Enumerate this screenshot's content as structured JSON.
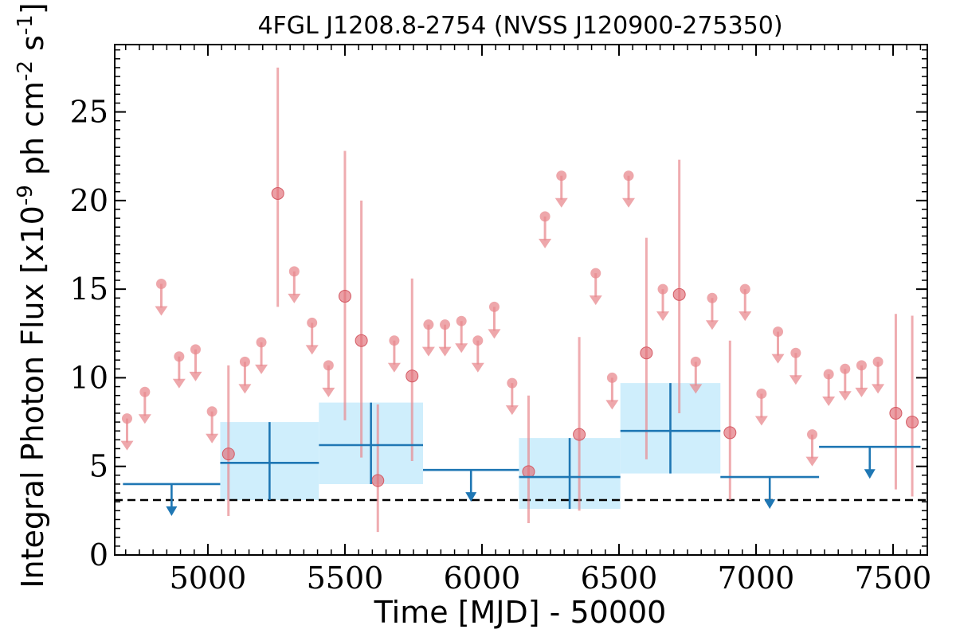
{
  "chart_data": {
    "type": "scatter",
    "title": "4FGL J1208.8-2754 (NVSS J120900-275350)",
    "xlabel": "Time [MJD] - 50000",
    "ylabel": "Integral Photon Flux [x10^-9 ph cm^-2 s^-1]",
    "xlim": [
      4660,
      7625
    ],
    "ylim": [
      0,
      28.8
    ],
    "xticks": [
      5000,
      5500,
      6000,
      6500,
      7000,
      7500
    ],
    "yticks": [
      0,
      5,
      10,
      15,
      20,
      25
    ],
    "xtick_labels": [
      "5000",
      "5500",
      "6000",
      "6500",
      "7000",
      "7500"
    ],
    "ytick_labels": [
      "0",
      "5",
      "10",
      "15",
      "20",
      "25"
    ],
    "baseline": 3.1,
    "colors": {
      "fine": "#e8898f",
      "coarse": "#1f77b4",
      "band": "#cfeefc",
      "baseline": "#000000"
    },
    "series": [
      {
        "kind": "detections",
        "points": [
          {
            "x": 5075,
            "y": 5.7,
            "lo": 2.2,
            "hi": 10.7
          },
          {
            "x": 5255,
            "y": 20.4,
            "lo": 14.0,
            "hi": 27.5
          },
          {
            "x": 5500,
            "y": 14.6,
            "lo": 7.6,
            "hi": 22.8
          },
          {
            "x": 5560,
            "y": 12.1,
            "lo": 5.5,
            "hi": 20.0
          },
          {
            "x": 5620,
            "y": 4.2,
            "lo": 1.3,
            "hi": 8.5
          },
          {
            "x": 5745,
            "y": 10.1,
            "lo": 5.3,
            "hi": 15.6
          },
          {
            "x": 6170,
            "y": 4.7,
            "lo": 1.8,
            "hi": 9.0
          },
          {
            "x": 6355,
            "y": 6.8,
            "lo": 2.5,
            "hi": 12.3
          },
          {
            "x": 6600,
            "y": 11.4,
            "lo": 5.4,
            "hi": 17.9
          },
          {
            "x": 6720,
            "y": 14.7,
            "lo": 8.0,
            "hi": 22.3
          },
          {
            "x": 6905,
            "y": 6.9,
            "lo": 3.1,
            "hi": 12.1
          },
          {
            "x": 7510,
            "y": 8.0,
            "lo": 3.7,
            "hi": 13.6
          },
          {
            "x": 7570,
            "y": 7.5,
            "lo": 3.3,
            "hi": 13.5
          }
        ]
      },
      {
        "kind": "upper_limits",
        "values": [
          [
            4705,
            7.7
          ],
          [
            4770,
            9.2
          ],
          [
            4830,
            15.3
          ],
          [
            4895,
            11.2
          ],
          [
            4955,
            11.6
          ],
          [
            5015,
            8.1
          ],
          [
            5135,
            10.9
          ],
          [
            5195,
            12.0
          ],
          [
            5315,
            16.0
          ],
          [
            5380,
            13.1
          ],
          [
            5440,
            10.7
          ],
          [
            5680,
            12.1
          ],
          [
            5805,
            13.0
          ],
          [
            5865,
            13.0
          ],
          [
            5925,
            13.2
          ],
          [
            5985,
            12.1
          ],
          [
            6045,
            14.0
          ],
          [
            6110,
            9.7
          ],
          [
            6230,
            19.1
          ],
          [
            6290,
            21.4
          ],
          [
            6415,
            15.9
          ],
          [
            6475,
            10.0
          ],
          [
            6535,
            21.4
          ],
          [
            6660,
            15.0
          ],
          [
            6780,
            10.9
          ],
          [
            6840,
            14.5
          ],
          [
            6960,
            15.0
          ],
          [
            7020,
            9.1
          ],
          [
            7080,
            12.6
          ],
          [
            7145,
            11.4
          ],
          [
            7205,
            6.8
          ],
          [
            7265,
            10.2
          ],
          [
            7325,
            10.5
          ],
          [
            7385,
            10.7
          ],
          [
            7445,
            10.9
          ]
        ]
      },
      {
        "kind": "binned_detections",
        "bins": [
          {
            "x0": 5045,
            "x1": 5405,
            "y": 5.2,
            "lo": 3.1,
            "hi": 7.5
          },
          {
            "x0": 5405,
            "x1": 5785,
            "y": 6.2,
            "lo": 4.0,
            "hi": 8.6
          },
          {
            "x0": 6135,
            "x1": 6505,
            "y": 4.4,
            "lo": 2.6,
            "hi": 6.6
          },
          {
            "x0": 6505,
            "x1": 6870,
            "y": 7.0,
            "lo": 4.6,
            "hi": 9.7
          }
        ]
      },
      {
        "kind": "binned_upper_limits",
        "bins": [
          {
            "x0": 4690,
            "x1": 5045,
            "y": 4.0
          },
          {
            "x0": 5785,
            "x1": 6135,
            "y": 4.8
          },
          {
            "x0": 6870,
            "x1": 7230,
            "y": 4.4
          },
          {
            "x0": 7230,
            "x1": 7600,
            "y": 6.1
          }
        ]
      }
    ]
  }
}
